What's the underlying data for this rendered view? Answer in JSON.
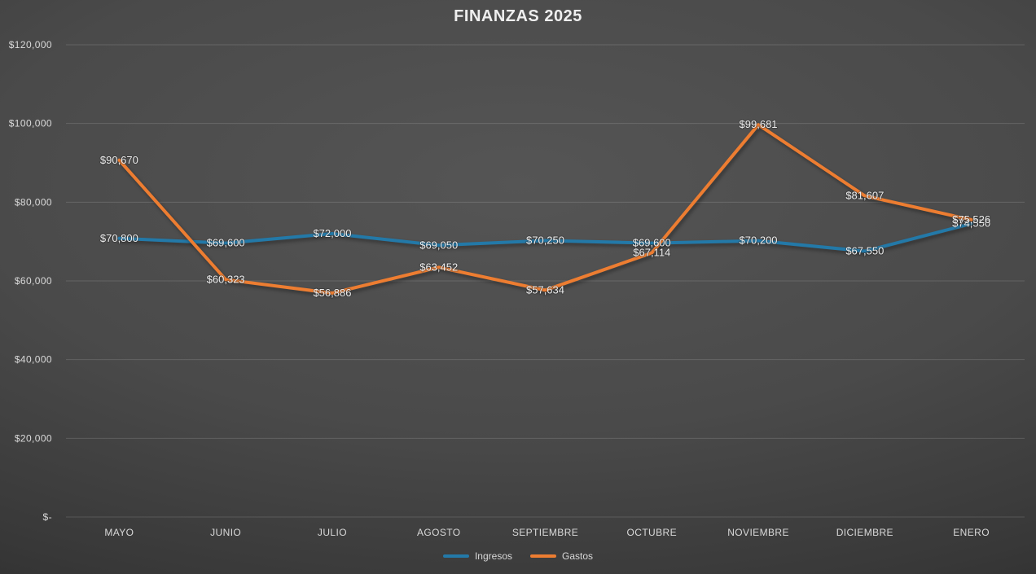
{
  "title": "FINANZAS 2025",
  "colors": {
    "ingresos": "#2379A8",
    "gastos": "#ED7D31",
    "axis_text": "#d9d9d9",
    "data_label_text": "#ececec",
    "background_center": "#555555",
    "background_edge": "#282828"
  },
  "chart_data": {
    "type": "line",
    "title": "FINANZAS 2025",
    "categories": [
      "MAYO",
      "JUNIO",
      "JULIO",
      "AGOSTO",
      "SEPTIEMBRE",
      "OCTUBRE",
      "NOVIEMBRE",
      "DICIEMBRE",
      "ENERO"
    ],
    "series": [
      {
        "name": "Ingresos",
        "color": "#2379A8",
        "values": [
          70800,
          69600,
          72000,
          69050,
          70250,
          69600,
          70200,
          67550,
          74550
        ],
        "labels": [
          "$70,800",
          "$69,600",
          "$72,000",
          "$69,050",
          "$70,250",
          "$69,600",
          "$70,200",
          "$67,550",
          "$74,550"
        ]
      },
      {
        "name": "Gastos",
        "color": "#ED7D31",
        "values": [
          90670,
          60323,
          56886,
          63452,
          57634,
          67114,
          99681,
          81607,
          75526
        ],
        "labels": [
          "$90,670",
          "$60,323",
          "$56,886",
          "$63,452",
          "$57,634",
          "$67,114",
          "$99,681",
          "$81,607",
          "$75,526"
        ]
      }
    ],
    "xlabel": "",
    "ylabel": "",
    "ylim": [
      0,
      120000
    ],
    "ytick_step": 20000,
    "ytick_labels": [
      "$-",
      "$20,000",
      "$40,000",
      "$60,000",
      "$80,000",
      "$100,000",
      "$120,000"
    ],
    "grid": true,
    "data_labels": true,
    "data_label_position": "center",
    "legend_position": "bottom"
  },
  "legend": {
    "items": [
      {
        "label": "Ingresos",
        "color": "#2379A8"
      },
      {
        "label": "Gastos",
        "color": "#ED7D31"
      }
    ]
  }
}
